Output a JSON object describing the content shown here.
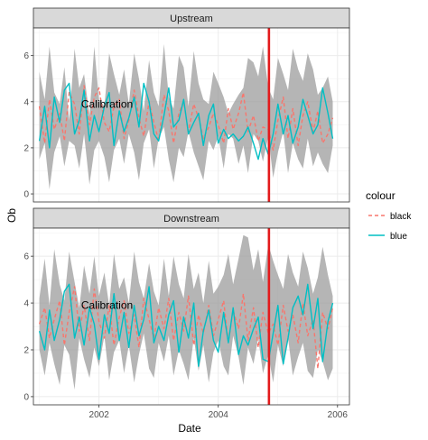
{
  "chart_data": {
    "type": "line",
    "xlabel": "Date",
    "ylabel": "Ob",
    "xlim": [
      2000.9,
      2006.2
    ],
    "ylim": [
      -0.35,
      7.2
    ],
    "x_ticks": [
      2002,
      2004,
      2006
    ],
    "y_ticks": [
      0,
      2,
      4,
      6
    ],
    "grid": true,
    "legend": {
      "title": "colour",
      "position": "right",
      "entries": [
        {
          "label": "black",
          "color": "#F8766D",
          "dash": "dashed"
        },
        {
          "label": "blue",
          "color": "#00BFC4",
          "dash": "solid"
        }
      ]
    },
    "vline": {
      "x": 2004.85,
      "color": "#E31A1C"
    },
    "annotation": {
      "text": "Calibration",
      "x": 2001.7,
      "y": 3.9
    },
    "panels": [
      {
        "strip": "Upstream",
        "x": [
          2001.0,
          2001.09,
          2001.17,
          2001.25,
          2001.34,
          2001.42,
          2001.5,
          2001.59,
          2001.67,
          2001.75,
          2001.84,
          2001.92,
          2002.0,
          2002.09,
          2002.17,
          2002.25,
          2002.34,
          2002.42,
          2002.5,
          2002.59,
          2002.67,
          2002.75,
          2002.84,
          2002.92,
          2003.0,
          2003.09,
          2003.17,
          2003.25,
          2003.34,
          2003.42,
          2003.5,
          2003.59,
          2003.67,
          2003.75,
          2003.84,
          2003.92,
          2004.0,
          2004.09,
          2004.17,
          2004.25,
          2004.34,
          2004.42,
          2004.5,
          2004.59,
          2004.67,
          2004.75,
          2004.84,
          2004.92,
          2005.0,
          2005.09,
          2005.17,
          2005.25,
          2005.34,
          2005.42,
          2005.5,
          2005.59,
          2005.67,
          2005.75,
          2005.84,
          2005.92
        ],
        "ribbon_low": [
          1.5,
          2.2,
          0.2,
          1.8,
          2.5,
          1.2,
          2.3,
          2.1,
          1.1,
          2.6,
          0.4,
          1.9,
          2.3,
          1.6,
          0.5,
          1.9,
          2.4,
          1.3,
          2.6,
          1.8,
          0.6,
          2.2,
          2.8,
          1.1,
          2.4,
          2.9,
          1.5,
          0.5,
          2.0,
          1.6,
          2.7,
          1.8,
          1.2,
          0.6,
          2.3,
          1.9,
          2.5,
          1.1,
          2.6,
          2.4,
          1.3,
          2.1,
          0.9,
          2.6,
          2.3,
          1.4,
          2.5,
          0.7,
          1.8,
          2.7,
          0.9,
          2.2,
          1.5,
          1.1,
          2.4,
          1.2,
          1.8,
          1.3,
          0.9,
          2.1
        ],
        "ribbon_high": [
          5.3,
          4.1,
          6.4,
          4.4,
          3.9,
          5.5,
          3.2,
          6.3,
          4.6,
          5.2,
          3.4,
          6.4,
          4.1,
          3.8,
          6.1,
          5.2,
          4.3,
          5.4,
          3.9,
          6.1,
          5.0,
          3.6,
          5.8,
          4.4,
          3.8,
          6.5,
          4.2,
          3.7,
          6.0,
          5.5,
          3.8,
          6.2,
          4.8,
          4.1,
          3.9,
          5.3,
          4.8,
          4.2,
          3.5,
          3.9,
          4.3,
          4.6,
          5.9,
          5.7,
          5.1,
          6.4,
          4.6,
          4.1,
          5.9,
          5.2,
          4.5,
          6.3,
          5.4,
          4.9,
          6.1,
          5.4,
          4.3,
          4.6,
          5.1,
          4.0
        ],
        "black": [
          3.8,
          2.2,
          4.1,
          2.8,
          3.5,
          2.3,
          4.4,
          3.9,
          2.6,
          4.7,
          3.0,
          4.2,
          4.6,
          3.1,
          2.7,
          3.8,
          4.1,
          2.4,
          3.2,
          4.5,
          3.3,
          2.5,
          4.0,
          3.1,
          2.3,
          4.3,
          3.6,
          2.2,
          3.5,
          4.0,
          2.7,
          3.9,
          3.3,
          2.4,
          2.9,
          3.5,
          3.0,
          2.2,
          3.7,
          2.8,
          3.5,
          4.4,
          2.7,
          3.4,
          2.3,
          2.9,
          2.8,
          1.9,
          3.2,
          4.2,
          2.4,
          3.7,
          2.1,
          3.4,
          4.0,
          2.7,
          3.6,
          2.2,
          2.6,
          3.3
        ],
        "blue": [
          2.3,
          3.8,
          2.0,
          4.2,
          3.1,
          4.5,
          4.8,
          2.6,
          3.2,
          4.5,
          2.3,
          3.4,
          2.7,
          3.8,
          4.4,
          2.1,
          3.6,
          2.7,
          3.3,
          4.2,
          2.9,
          4.8,
          4.0,
          2.6,
          2.3,
          3.4,
          4.6,
          2.9,
          3.2,
          4.1,
          2.6,
          3.1,
          3.5,
          2.1,
          3.4,
          3.9,
          2.2,
          2.8,
          2.4,
          2.6,
          2.3,
          2.5,
          2.9,
          2.2,
          1.5,
          2.4,
          1.7,
          2.6,
          3.9,
          2.6,
          3.4,
          2.2,
          2.9,
          4.1,
          3.4,
          2.6,
          3.0,
          4.6,
          3.5,
          2.4
        ]
      },
      {
        "strip": "Downstream",
        "x": [
          2001.0,
          2001.09,
          2001.17,
          2001.25,
          2001.34,
          2001.42,
          2001.5,
          2001.59,
          2001.67,
          2001.75,
          2001.84,
          2001.92,
          2002.0,
          2002.09,
          2002.17,
          2002.25,
          2002.34,
          2002.42,
          2002.5,
          2002.59,
          2002.67,
          2002.75,
          2002.84,
          2002.92,
          2003.0,
          2003.09,
          2003.17,
          2003.25,
          2003.34,
          2003.42,
          2003.5,
          2003.59,
          2003.67,
          2003.75,
          2003.84,
          2003.92,
          2004.0,
          2004.09,
          2004.17,
          2004.25,
          2004.34,
          2004.42,
          2004.5,
          2004.59,
          2004.67,
          2004.75,
          2004.84,
          2004.92,
          2005.0,
          2005.09,
          2005.17,
          2005.25,
          2005.34,
          2005.42,
          2005.5,
          2005.59,
          2005.67,
          2005.75,
          2005.84,
          2005.92
        ],
        "ribbon_low": [
          2.0,
          0.9,
          2.3,
          1.4,
          0.5,
          2.2,
          1.8,
          0.3,
          2.5,
          1.6,
          0.8,
          2.1,
          1.3,
          2.6,
          0.7,
          1.9,
          2.4,
          1.0,
          2.2,
          0.6,
          1.8,
          2.7,
          1.2,
          0.8,
          2.3,
          1.5,
          2.6,
          0.9,
          2.0,
          1.4,
          0.7,
          2.5,
          1.1,
          2.2,
          0.6,
          1.9,
          2.4,
          1.3,
          0.9,
          2.6,
          1.7,
          0.5,
          2.1,
          1.4,
          2.5,
          1.0,
          1.8,
          0.6,
          2.2,
          1.3,
          2.5,
          0.9,
          1.7,
          2.3,
          1.1,
          0.8,
          2.0,
          1.5,
          0.7,
          1.2
        ],
        "ribbon_high": [
          4.2,
          5.9,
          3.9,
          6.3,
          4.8,
          4.1,
          6.2,
          4.9,
          3.8,
          5.6,
          4.4,
          6.0,
          4.3,
          5.3,
          3.9,
          6.1,
          4.6,
          5.1,
          4.0,
          6.2,
          4.9,
          4.2,
          5.7,
          4.5,
          3.9,
          5.9,
          4.3,
          6.0,
          4.8,
          4.2,
          6.1,
          4.6,
          5.3,
          4.0,
          5.8,
          4.4,
          4.7,
          5.2,
          6.1,
          4.8,
          5.9,
          6.9,
          6.8,
          5.4,
          6.3,
          4.9,
          6.5,
          5.8,
          5.2,
          4.6,
          6.1,
          5.3,
          4.7,
          6.2,
          5.5,
          4.4,
          5.1,
          6.4,
          5.2,
          4.3
        ],
        "black": [
          3.1,
          3.8,
          2.5,
          3.3,
          4.1,
          2.2,
          3.6,
          4.7,
          2.8,
          3.9,
          2.4,
          4.6,
          3.2,
          2.5,
          3.9,
          2.2,
          3.4,
          4.1,
          2.7,
          3.5,
          2.1,
          4.2,
          3.3,
          2.5,
          3.8,
          2.9,
          4.2,
          2.4,
          3.6,
          2.8,
          4.3,
          2.2,
          3.5,
          2.7,
          3.9,
          2.6,
          3.3,
          4.1,
          2.3,
          3.7,
          2.9,
          4.4,
          2.4,
          3.8,
          2.1,
          3.6,
          2.7,
          3.1,
          2.2,
          3.9,
          2.8,
          3.5,
          2.3,
          4.0,
          2.6,
          3.3,
          1.2,
          3.6,
          2.9,
          3.8
        ],
        "blue": [
          2.8,
          2.0,
          3.7,
          2.4,
          3.3,
          4.5,
          4.8,
          2.5,
          3.4,
          2.2,
          3.8,
          3.1,
          1.6,
          3.5,
          2.7,
          4.4,
          2.4,
          3.6,
          2.1,
          3.9,
          2.6,
          3.3,
          4.7,
          2.3,
          3.0,
          2.4,
          3.5,
          4.1,
          1.9,
          3.4,
          2.5,
          4.0,
          1.3,
          2.8,
          3.7,
          2.4,
          1.9,
          3.6,
          2.3,
          3.8,
          1.8,
          2.6,
          2.2,
          2.9,
          3.4,
          1.6,
          1.5,
          2.7,
          3.9,
          1.4,
          2.5,
          3.8,
          4.3,
          3.5,
          4.8,
          2.9,
          4.2,
          1.5,
          3.2,
          4.0
        ]
      }
    ]
  }
}
